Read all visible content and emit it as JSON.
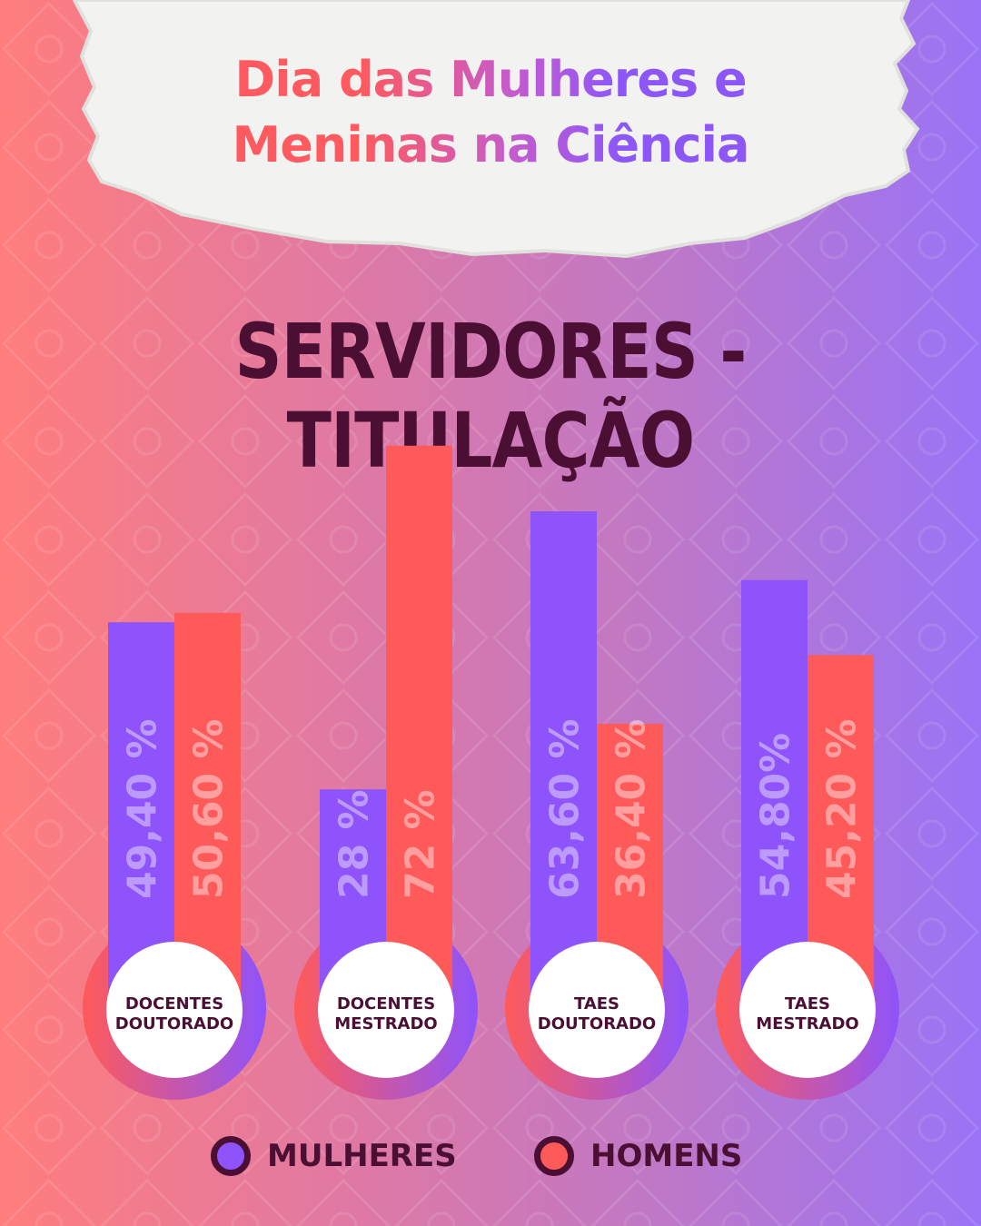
{
  "header": {
    "line1": "Dia das Mulheres e",
    "line2": "Meninas na Ciência"
  },
  "title": "SERVIDORES - TITULAÇÃO",
  "colors": {
    "mulheres": "#8e53fb",
    "homens": "#ff5a5a",
    "dark": "#4a0f33"
  },
  "legend": [
    {
      "label": "MULHERES",
      "color": "#8e53fb"
    },
    {
      "label": "HOMENS",
      "color": "#ff5a5a"
    }
  ],
  "chart_data": {
    "type": "bar",
    "categories": [
      [
        "DOCENTES",
        "DOUTORADO"
      ],
      [
        "DOCENTES",
        "MESTRADO"
      ],
      [
        "TAES",
        "DOUTORADO"
      ],
      [
        "TAES",
        "MESTRADO"
      ]
    ],
    "series": [
      {
        "name": "MULHERES",
        "values": [
          49.4,
          28,
          63.6,
          54.8
        ],
        "labels": [
          "49,40 %",
          "28 %",
          "63,60 %",
          "54,80%"
        ]
      },
      {
        "name": "HOMENS",
        "values": [
          50.6,
          72,
          36.4,
          45.2
        ],
        "labels": [
          "50,60 %",
          "72 %",
          "36,40 %",
          "45,20 %"
        ]
      }
    ]
  }
}
